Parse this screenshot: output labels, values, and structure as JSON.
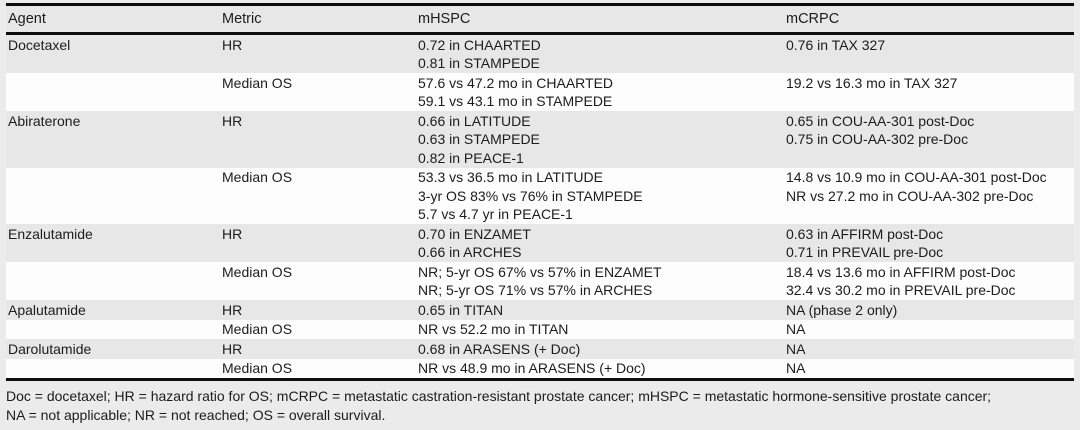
{
  "table": {
    "columns": [
      "Agent",
      "Metric",
      "mHSPC",
      "mCRPC"
    ],
    "rows": [
      {
        "agent": "Docetaxel",
        "metric": "HR",
        "mhspc": [
          "0.72 in CHAARTED",
          "0.81 in STAMPEDE"
        ],
        "mcrpc": [
          "0.76 in TAX 327"
        ],
        "shaded": true
      },
      {
        "agent": "",
        "metric": "Median OS",
        "mhspc": [
          "57.6 vs 47.2 mo in CHAARTED",
          "59.1 vs 43.1 mo in STAMPEDE"
        ],
        "mcrpc": [
          "19.2 vs 16.3 mo in TAX 327"
        ],
        "shaded": false
      },
      {
        "agent": "Abiraterone",
        "metric": "HR",
        "mhspc": [
          "0.66 in LATITUDE",
          "0.63 in STAMPEDE",
          "0.82 in PEACE-1"
        ],
        "mcrpc": [
          "0.65 in COU-AA-301 post-Doc",
          "0.75 in COU-AA-302 pre-Doc"
        ],
        "shaded": true
      },
      {
        "agent": "",
        "metric": "Median OS",
        "mhspc": [
          "53.3 vs 36.5 mo in LATITUDE",
          "3-yr OS 83% vs 76% in STAMPEDE",
          "5.7 vs 4.7 yr in PEACE-1"
        ],
        "mcrpc": [
          "14.8 vs 10.9 mo in COU-AA-301 post-Doc",
          "NR vs 27.2 mo in COU-AA-302 pre-Doc"
        ],
        "shaded": false
      },
      {
        "agent": "Enzalutamide",
        "metric": "HR",
        "mhspc": [
          "0.70 in ENZAMET",
          "0.66 in ARCHES"
        ],
        "mcrpc": [
          "0.63 in AFFIRM post-Doc",
          "0.71 in PREVAIL pre-Doc"
        ],
        "shaded": true
      },
      {
        "agent": "",
        "metric": "Median OS",
        "mhspc": [
          "NR; 5-yr OS 67% vs 57% in ENZAMET",
          "NR; 5-yr OS 71% vs 57% in ARCHES"
        ],
        "mcrpc": [
          "18.4 vs 13.6 mo in AFFIRM post-Doc",
          "32.4 vs 30.2 mo in PREVAIL pre-Doc"
        ],
        "shaded": false
      },
      {
        "agent": "Apalutamide",
        "metric": "HR",
        "mhspc": [
          "0.65 in TITAN"
        ],
        "mcrpc": [
          "NA (phase 2 only)"
        ],
        "shaded": true
      },
      {
        "agent": "",
        "metric": "Median OS",
        "mhspc": [
          "NR vs 52.2 mo in TITAN"
        ],
        "mcrpc": [
          "NA"
        ],
        "shaded": false
      },
      {
        "agent": "Darolutamide",
        "metric": "HR",
        "mhspc": [
          "0.68 in ARASENS (+ Doc)"
        ],
        "mcrpc": [
          "NA"
        ],
        "shaded": true
      },
      {
        "agent": "",
        "metric": "Median OS",
        "mhspc": [
          "NR vs 48.9 mo in ARASENS (+ Doc)"
        ],
        "mcrpc": [
          "NA"
        ],
        "shaded": false
      }
    ],
    "footnote_lines": [
      "Doc = docetaxel; HR = hazard ratio for OS; mCRPC = metastatic castration-resistant prostate cancer; mHSPC = metastatic hormone-sensitive prostate cancer;",
      "NA = not applicable; NR = not reached; OS = overall survival."
    ]
  },
  "colors": {
    "page_bg": "#ebebeb",
    "shaded_row": "#e7e7e7",
    "plain_row": "#fdfdfd",
    "rule": "#0d0d0d",
    "text": "#1c1c1c"
  }
}
